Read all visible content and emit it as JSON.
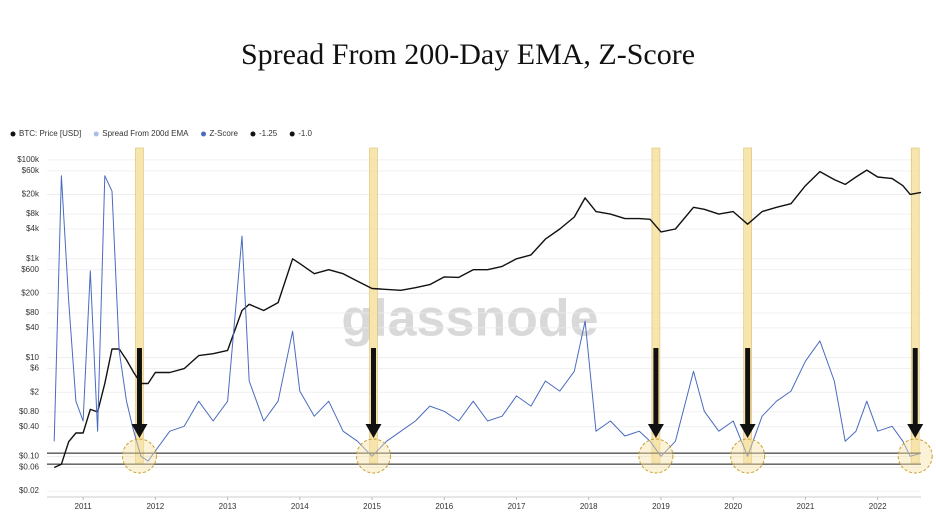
{
  "chart_data": {
    "type": "line",
    "title": "Spread From 200-Day EMA, Z-Score",
    "watermark": "glassnode",
    "x": [
      2010.6,
      2010.7,
      2010.8,
      2010.9,
      2011.0,
      2011.1,
      2011.2,
      2011.3,
      2011.4,
      2011.5,
      2011.6,
      2011.7,
      2011.8,
      2011.9,
      2012.0,
      2012.2,
      2012.4,
      2012.6,
      2012.8,
      2013.0,
      2013.2,
      2013.3,
      2013.5,
      2013.7,
      2013.9,
      2014.0,
      2014.2,
      2014.4,
      2014.6,
      2014.8,
      2015.0,
      2015.2,
      2015.4,
      2015.6,
      2015.8,
      2016.0,
      2016.2,
      2016.4,
      2016.6,
      2016.8,
      2017.0,
      2017.2,
      2017.4,
      2017.6,
      2017.8,
      2017.95,
      2018.1,
      2018.3,
      2018.5,
      2018.7,
      2018.85,
      2019.0,
      2019.2,
      2019.45,
      2019.6,
      2019.8,
      2020.0,
      2020.2,
      2020.4,
      2020.6,
      2020.8,
      2021.0,
      2021.2,
      2021.4,
      2021.55,
      2021.7,
      2021.85,
      2022.0,
      2022.2,
      2022.35,
      2022.45,
      2022.6
    ],
    "series": [
      {
        "name": "BTC: Price [USD]",
        "color": "#111111",
        "values": [
          0.06,
          0.07,
          0.2,
          0.3,
          0.3,
          0.9,
          0.8,
          3,
          15,
          15,
          9,
          5,
          3,
          3,
          5,
          5,
          6,
          11,
          12,
          14,
          90,
          120,
          90,
          130,
          1000,
          800,
          500,
          600,
          500,
          350,
          250,
          240,
          230,
          260,
          300,
          430,
          420,
          600,
          600,
          700,
          1000,
          1200,
          2500,
          4000,
          7000,
          17000,
          9000,
          8000,
          6500,
          6500,
          6300,
          3500,
          4000,
          11000,
          10000,
          8000,
          9000,
          5000,
          9000,
          11000,
          13000,
          30000,
          58000,
          40000,
          32000,
          45000,
          62000,
          45000,
          42000,
          30000,
          20000,
          22000
        ]
      },
      {
        "name": "Z-Score",
        "color": "#4a6bbf",
        "axis": "y2",
        "values": [
          -0.73,
          5.3,
          2.45,
          0.18,
          -0.27,
          3.14,
          -0.5,
          5.3,
          4.95,
          1.32,
          0.18,
          -0.5,
          -1.07,
          -1.18,
          -0.95,
          -0.5,
          -0.39,
          0.18,
          -0.27,
          0.18,
          3.93,
          0.64,
          -0.27,
          0.18,
          1.77,
          0.41,
          -0.16,
          0.18,
          -0.5,
          -0.73,
          -1.07,
          -0.73,
          -0.5,
          -0.27,
          0.07,
          -0.05,
          -0.27,
          0.18,
          -0.27,
          -0.16,
          0.3,
          0.07,
          0.64,
          0.41,
          0.86,
          2.0,
          -0.5,
          -0.27,
          -0.61,
          -0.5,
          -0.73,
          -1.07,
          -0.73,
          0.86,
          -0.05,
          -0.5,
          -0.27,
          -1.07,
          -0.16,
          0.18,
          0.41,
          1.09,
          1.55,
          0.64,
          -0.73,
          -0.5,
          0.18,
          -0.5,
          -0.39,
          -0.73,
          -1.07,
          -1.0
        ]
      }
    ],
    "hidden_series": [
      {
        "name": "Spread From 200d EMA",
        "color": "#a9bde6"
      }
    ],
    "reference_lines": [
      {
        "name": "-1.25",
        "value": -1.25,
        "color": "#111111"
      },
      {
        "name": "-1.0",
        "value": -1.0,
        "color": "#111111"
      }
    ],
    "highlights": [
      2011.78,
      2015.02,
      2018.93,
      2020.2,
      2022.52
    ],
    "highlight_color": "#f7e3a6",
    "xlim": [
      2010.5,
      2022.6
    ],
    "xticks": [
      2011,
      2012,
      2013,
      2014,
      2015,
      2016,
      2017,
      2018,
      2019,
      2020,
      2021,
      2022
    ],
    "ylim": [
      0.01,
      200000
    ],
    "log_y": true,
    "yticks": [
      {
        "value": 100000,
        "label": "$100k"
      },
      {
        "value": 60000,
        "label": "$60k"
      },
      {
        "value": 20000,
        "label": "$20k"
      },
      {
        "value": 8000,
        "label": "$8k"
      },
      {
        "value": 4000,
        "label": "$4k"
      },
      {
        "value": 1000,
        "label": "$1k"
      },
      {
        "value": 600,
        "label": "$600"
      },
      {
        "value": 200,
        "label": "$200"
      },
      {
        "value": 80,
        "label": "$80"
      },
      {
        "value": 40,
        "label": "$40"
      },
      {
        "value": 10,
        "label": "$10"
      },
      {
        "value": 6,
        "label": "$6"
      },
      {
        "value": 2,
        "label": "$2"
      },
      {
        "value": 0.8,
        "label": "$0.80"
      },
      {
        "value": 0.4,
        "label": "$0.40"
      },
      {
        "value": 0.1,
        "label": "$0.10"
      },
      {
        "value": 0.06,
        "label": "$0.06"
      },
      {
        "value": 0.02,
        "label": "$0.02"
      }
    ],
    "y2lim": [
      -2.2,
      6
    ],
    "grid": true
  }
}
